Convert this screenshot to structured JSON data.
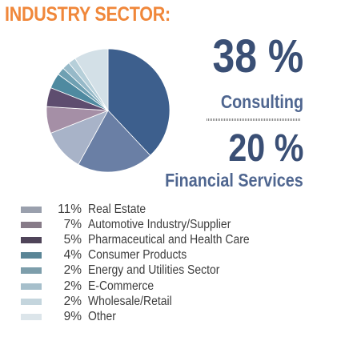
{
  "title": "INDUSTRY SECTOR:",
  "callouts": [
    {
      "value": "38 %",
      "label": "Consulting"
    },
    {
      "value": "20 %",
      "label": "Financial Services"
    }
  ],
  "chart_data": {
    "type": "pie",
    "title": "INDUSTRY SECTOR:",
    "slices": [
      {
        "label": "Consulting",
        "pct_label": "",
        "value": 38,
        "color": "#3d5f8d"
      },
      {
        "label": "Financial Services",
        "pct_label": "",
        "value": 20,
        "color": "#6a7fa5"
      },
      {
        "label": "Real Estate",
        "pct_label": "11%",
        "value": 11,
        "color": "#a8b3c8"
      },
      {
        "label": "Automotive Industry/Supplier",
        "pct_label": "7%",
        "value": 7,
        "color": "#a58fa6"
      },
      {
        "label": "Pharmaceutical and Health Care",
        "pct_label": "5%",
        "value": 5,
        "color": "#5e4d6f"
      },
      {
        "label": "Consumer Products",
        "pct_label": "4%",
        "value": 4,
        "color": "#4f8aa0"
      },
      {
        "label": "Energy and Utilities Sector",
        "pct_label": "2%",
        "value": 2,
        "color": "#6fa0b2"
      },
      {
        "label": "E-Commerce",
        "pct_label": "2%",
        "value": 2,
        "color": "#96b9c8"
      },
      {
        "label": "Wholesale/Retail",
        "pct_label": "2%",
        "value": 2,
        "color": "#b6cfd9"
      },
      {
        "label": "Other",
        "pct_label": "9%",
        "value": 9,
        "color": "#d3e0e7"
      }
    ]
  },
  "legend": [
    {
      "pct": "11%",
      "label": "Real Estate",
      "color": "#9aa0ad"
    },
    {
      "pct": "7%",
      "label": "Automotive Industry/Supplier",
      "color": "#877b88"
    },
    {
      "pct": "5%",
      "label": "Pharmaceutical and Health Care",
      "color": "#4f4459"
    },
    {
      "pct": "4%",
      "label": "Consumer Products",
      "color": "#5a8596"
    },
    {
      "pct": "2%",
      "label": "Energy and Utilities Sector",
      "color": "#7d9eab"
    },
    {
      "pct": "2%",
      "label": "E-Commerce",
      "color": "#a6bfcb"
    },
    {
      "pct": "2%",
      "label": "Wholesale/Retail",
      "color": "#c4d5dd"
    },
    {
      "pct": "9%",
      "label": "Other",
      "color": "#dce5ea"
    }
  ]
}
